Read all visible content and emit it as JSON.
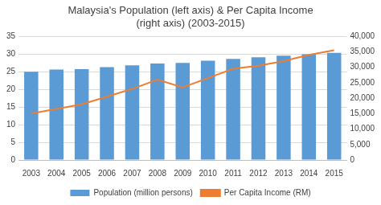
{
  "chart_data": {
    "type": "bar",
    "title": "Malaysia's Population (left axis) & Per Capita Income (right axis) (2003-2015)",
    "categories": [
      "2003",
      "2004",
      "2005",
      "2006",
      "2007",
      "2008",
      "2009",
      "2010",
      "2011",
      "2012",
      "2013",
      "2014",
      "2015"
    ],
    "series": [
      {
        "name": "Population (million persons)",
        "type": "bar",
        "color": "#5b9bd5",
        "values": [
          25.0,
          25.6,
          25.7,
          26.3,
          26.8,
          27.3,
          27.5,
          28.1,
          28.6,
          29.1,
          29.5,
          29.9,
          30.3
        ]
      },
      {
        "name": "Per Capita Income (RM)",
        "type": "line",
        "color": "#ed7d31",
        "axis": "y2",
        "values": [
          15000,
          16500,
          18000,
          20500,
          23000,
          26000,
          23500,
          26500,
          29500,
          30500,
          32000,
          34000,
          35500
        ]
      }
    ],
    "ylim": [
      0,
      35
    ],
    "yticks": [
      0,
      5,
      10,
      15,
      20,
      25,
      30,
      35
    ],
    "y2lim": [
      0,
      40000
    ],
    "y2ticks": [
      0,
      {
        "value": 5000,
        "label": "5,000"
      },
      {
        "value": 10000,
        "label": "10,000"
      },
      {
        "value": 15000,
        "label": "15,000"
      },
      {
        "value": 20000,
        "label": "20,000"
      },
      {
        "value": 25000,
        "label": "25,000"
      },
      {
        "value": 30000,
        "label": "30,000"
      },
      {
        "value": 35000,
        "label": "35,000"
      },
      {
        "value": 40000,
        "label": "40,000"
      }
    ],
    "grid": true,
    "legend": "bottom"
  }
}
